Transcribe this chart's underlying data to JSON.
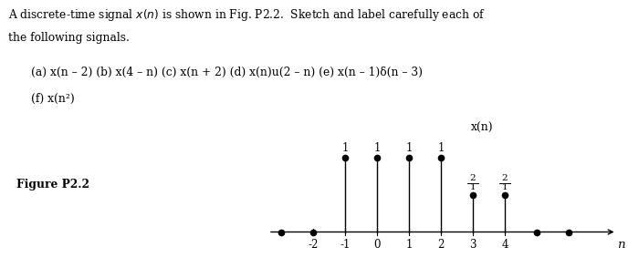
{
  "title_line1": "A discrete-time signal $x(n)$ is shown in Fig. P2.2.  Sketch and label carefully each of",
  "title_line2": "the following signals.",
  "parts_line1a": "(a) ",
  "parts_line1b": "x(n – 2) ",
  "parts_line1c": "(b) ",
  "parts_line1d": "x(4 – n) ",
  "parts_line1e": "(c) ",
  "parts_line1f": "x(n + 2) ",
  "parts_line1g": "(d) ",
  "parts_line1h": "x(n)u(2 – n) ",
  "parts_line1i": "(e) ",
  "parts_line1j": "x(n – 1)δ(n – 3)",
  "parts_line2a": "(f) ",
  "parts_line2b": "x(n²)",
  "figure_label": "Figure P2.2",
  "ylabel": "x(n)",
  "xlabel": "n",
  "n_values": [
    -3,
    -2,
    -1,
    0,
    1,
    2,
    3,
    4,
    5,
    6
  ],
  "x_values": [
    0,
    0,
    1,
    1,
    1,
    1,
    0.5,
    0.5,
    0,
    0
  ],
  "stem_indices": [
    2,
    3,
    4,
    5,
    6,
    7
  ],
  "dot_indices": [
    0,
    1,
    8,
    9
  ],
  "tick_positions": [
    -2,
    -1,
    0,
    1,
    2,
    3,
    4
  ],
  "tick_labels": [
    "-2",
    "-1",
    "0",
    "1",
    "2",
    "3",
    "4"
  ],
  "axis_xlim": [
    -3.5,
    7.8
  ],
  "axis_ylim": [
    -0.32,
    1.55
  ]
}
